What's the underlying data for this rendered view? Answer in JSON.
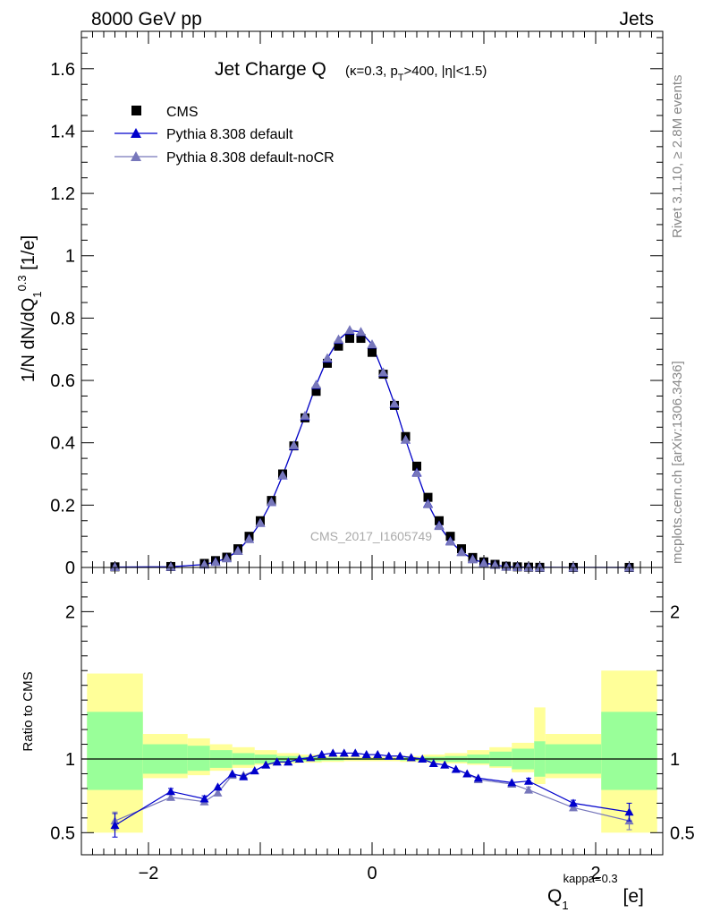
{
  "header": {
    "energy": "8000 GeV pp",
    "process": "Jets"
  },
  "side_labels": {
    "rivet": "Rivet 3.1.10, ≥ 2.8M events",
    "mcplots": "mcplots.cern.ch [arXiv:1306.3436]"
  },
  "watermark": "CMS_2017_I1605749",
  "chart_data": [
    {
      "type": "scatter",
      "panel": "main",
      "title": "Jet Charge Q",
      "title_suffix": "(κ=0.3, pT>400, |η|<1.5)",
      "ylabel": "1/N dN/dQ1^0.3 [1/e]",
      "xlim": [
        -2.6,
        2.6
      ],
      "ylim": [
        0,
        1.72
      ],
      "yticks": [
        0,
        0.2,
        0.4,
        0.6,
        0.8,
        1,
        1.2,
        1.4,
        1.6
      ],
      "legend": {
        "placement": "top-left",
        "entries": [
          "CMS",
          "Pythia 8.308 default",
          "Pythia 8.308 default-noCR"
        ]
      },
      "x": [
        -2.3,
        -1.8,
        -1.5,
        -1.4,
        -1.3,
        -1.2,
        -1.1,
        -1.0,
        -0.9,
        -0.8,
        -0.7,
        -0.6,
        -0.5,
        -0.4,
        -0.3,
        -0.2,
        -0.1,
        0.0,
        0.1,
        0.2,
        0.3,
        0.4,
        0.5,
        0.6,
        0.7,
        0.8,
        0.9,
        1.0,
        1.1,
        1.2,
        1.3,
        1.4,
        1.5,
        1.8,
        2.3
      ],
      "series": [
        {
          "name": "CMS",
          "color": "#000000",
          "marker": "square",
          "values": [
            0.002,
            0.003,
            0.013,
            0.022,
            0.033,
            0.06,
            0.1,
            0.15,
            0.215,
            0.3,
            0.39,
            0.48,
            0.565,
            0.655,
            0.71,
            0.735,
            0.735,
            0.69,
            0.62,
            0.52,
            0.42,
            0.325,
            0.225,
            0.15,
            0.1,
            0.06,
            0.032,
            0.018,
            0.01,
            0.004,
            0.002,
            0.001,
            0.0005,
            0.0003,
            0.0002
          ]
        },
        {
          "name": "Pythia 8.308 default",
          "color": "#0000cc",
          "marker": "triangle",
          "values": [
            0.0012,
            0.0023,
            0.0095,
            0.018,
            0.03,
            0.054,
            0.092,
            0.143,
            0.21,
            0.295,
            0.39,
            0.485,
            0.585,
            0.67,
            0.73,
            0.76,
            0.755,
            0.715,
            0.625,
            0.525,
            0.41,
            0.305,
            0.205,
            0.135,
            0.085,
            0.05,
            0.027,
            0.015,
            0.0085,
            0.0025,
            0.0013,
            0.0008,
            0.0004,
            0.0002,
            0.0001
          ]
        },
        {
          "name": "Pythia 8.308 default-noCR",
          "color": "#7777bb",
          "marker": "triangle",
          "values": [
            0.0012,
            0.0022,
            0.0093,
            0.017,
            0.029,
            0.053,
            0.091,
            0.143,
            0.21,
            0.296,
            0.392,
            0.487,
            0.587,
            0.672,
            0.732,
            0.762,
            0.756,
            0.716,
            0.626,
            0.526,
            0.41,
            0.303,
            0.203,
            0.133,
            0.083,
            0.049,
            0.026,
            0.014,
            0.008,
            0.0024,
            0.0012,
            0.0007,
            0.0004,
            0.0002,
            0.0001
          ]
        }
      ]
    },
    {
      "type": "line",
      "panel": "ratio",
      "ylabel": "Ratio to CMS",
      "xlabel": "Q1^kappa=0.3 [e]",
      "xlim": [
        -2.6,
        2.6
      ],
      "ylim": [
        0.35,
        2.3
      ],
      "yticks": [
        0.5,
        1,
        2
      ],
      "xticks": [
        -2,
        0,
        2
      ],
      "reference_line": 1,
      "uncertainty_bands": {
        "bins": [
          [
            -2.55,
            -2.05
          ],
          [
            -2.05,
            -1.65
          ],
          [
            -1.65,
            -1.45
          ],
          [
            -1.45,
            -1.25
          ],
          [
            -1.25,
            -1.05
          ],
          [
            -1.05,
            -0.85
          ],
          [
            -0.85,
            -0.65
          ],
          [
            -0.65,
            -0.45
          ],
          [
            -0.45,
            -0.25
          ],
          [
            -0.25,
            0.25
          ],
          [
            0.25,
            0.45
          ],
          [
            0.45,
            0.65
          ],
          [
            0.65,
            0.85
          ],
          [
            0.85,
            1.05
          ],
          [
            1.05,
            1.25
          ],
          [
            1.25,
            1.45
          ],
          [
            1.45,
            1.55
          ],
          [
            1.55,
            2.05
          ],
          [
            2.05,
            2.55
          ]
        ],
        "stat": [
          [
            0.79,
            1.32
          ],
          [
            0.9,
            1.1
          ],
          [
            0.92,
            1.09
          ],
          [
            0.94,
            1.06
          ],
          [
            0.96,
            1.04
          ],
          [
            0.97,
            1.03
          ],
          [
            0.98,
            1.02
          ],
          [
            0.985,
            1.015
          ],
          [
            0.99,
            1.01
          ],
          [
            0.995,
            1.005
          ],
          [
            0.99,
            1.01
          ],
          [
            0.985,
            1.015
          ],
          [
            0.98,
            1.02
          ],
          [
            0.97,
            1.03
          ],
          [
            0.95,
            1.05
          ],
          [
            0.93,
            1.07
          ],
          [
            0.88,
            1.12
          ],
          [
            0.9,
            1.1
          ],
          [
            0.79,
            1.32
          ]
        ],
        "syst": [
          [
            0.5,
            1.58
          ],
          [
            0.87,
            1.17
          ],
          [
            0.89,
            1.14
          ],
          [
            0.92,
            1.1
          ],
          [
            0.94,
            1.08
          ],
          [
            0.96,
            1.06
          ],
          [
            0.97,
            1.04
          ],
          [
            0.975,
            1.03
          ],
          [
            0.98,
            1.02
          ],
          [
            0.985,
            1.015
          ],
          [
            0.98,
            1.02
          ],
          [
            0.975,
            1.03
          ],
          [
            0.97,
            1.04
          ],
          [
            0.96,
            1.06
          ],
          [
            0.94,
            1.08
          ],
          [
            0.91,
            1.11
          ],
          [
            0.83,
            1.35
          ],
          [
            0.87,
            1.17
          ],
          [
            0.5,
            1.6
          ]
        ]
      },
      "series": [
        {
          "name": "Pythia 8.308 default",
          "color": "#0000cc",
          "marker": "triangle",
          "values": [
            0.55,
            0.78,
            0.73,
            0.81,
            0.9,
            0.88,
            0.92,
            0.96,
            0.98,
            0.98,
            1.0,
            1.01,
            1.03,
            1.04,
            1.04,
            1.04,
            1.03,
            1.03,
            1.02,
            1.02,
            1.01,
            1.0,
            0.97,
            0.96,
            0.93,
            0.9,
            0.87,
            0.84,
            0.85,
            0.7,
            0.64
          ],
          "errors": [
            0.08,
            0.02,
            0.02,
            0.01,
            0.01,
            0.01,
            0.01,
            0.005,
            0.005,
            0.005,
            0.005,
            0.005,
            0.005,
            0.005,
            0.005,
            0.005,
            0.005,
            0.005,
            0.005,
            0.005,
            0.005,
            0.005,
            0.005,
            0.005,
            0.01,
            0.01,
            0.01,
            0.01,
            0.02,
            0.02,
            0.06
          ]
        },
        {
          "name": "Pythia 8.308 default-noCR",
          "color": "#7777bb",
          "marker": "triangle",
          "values": [
            0.58,
            0.74,
            0.71,
            0.77,
            0.89,
            0.89,
            0.92,
            0.96,
            0.98,
            0.98,
            1.0,
            1.01,
            1.03,
            1.04,
            1.04,
            1.04,
            1.03,
            1.03,
            1.02,
            1.02,
            1.01,
            1.0,
            0.97,
            0.96,
            0.93,
            0.9,
            0.86,
            0.83,
            0.79,
            0.67,
            0.58
          ],
          "errors": [
            0.06,
            0.02,
            0.02,
            0.01,
            0.01,
            0.01,
            0.01,
            0.005,
            0.005,
            0.005,
            0.005,
            0.005,
            0.005,
            0.005,
            0.005,
            0.005,
            0.005,
            0.005,
            0.005,
            0.005,
            0.005,
            0.005,
            0.005,
            0.005,
            0.01,
            0.01,
            0.01,
            0.01,
            0.02,
            0.02,
            0.06
          ]
        }
      ],
      "x": [
        -2.3,
        -1.8,
        -1.5,
        -1.38,
        -1.25,
        -1.15,
        -1.05,
        -0.95,
        -0.85,
        -0.75,
        -0.65,
        -0.55,
        -0.45,
        -0.35,
        -0.25,
        -0.15,
        -0.05,
        0.05,
        0.15,
        0.25,
        0.35,
        0.45,
        0.55,
        0.65,
        0.75,
        0.85,
        0.95,
        1.25,
        1.4,
        1.8,
        2.3
      ]
    }
  ]
}
